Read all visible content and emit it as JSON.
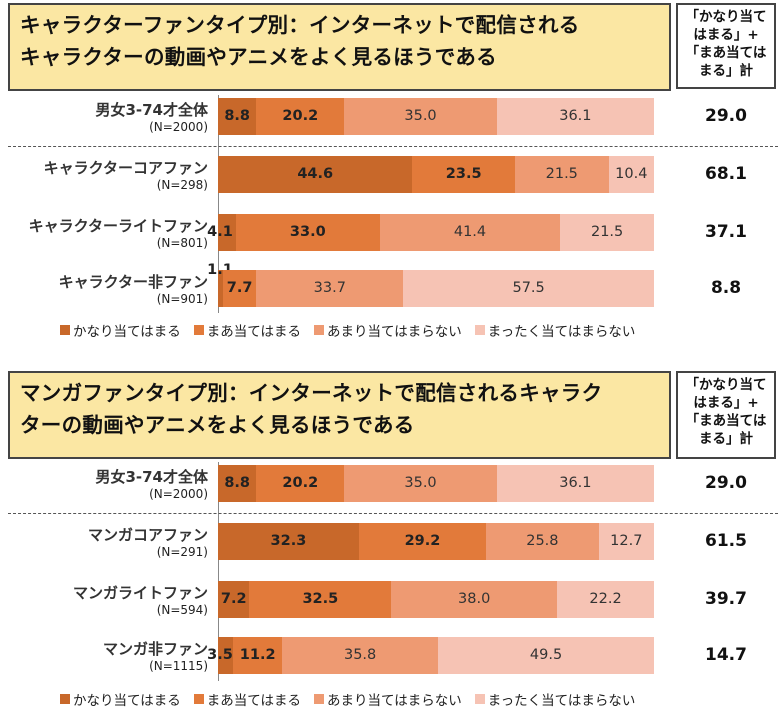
{
  "colors": [
    "#c8682a",
    "#e27a3a",
    "#ee9a72",
    "#f6c3b4"
  ],
  "legend": [
    "かなり当てはまる",
    "まあ当てはまる",
    "あまり当てはまらない",
    "まったく当てはまらない"
  ],
  "chart_data": [
    {
      "type": "bar",
      "stacked": true,
      "orientation": "horizontal",
      "title_lines": [
        "キャラクターファンタイプ別：インターネットで配信される",
        "キャラクターの動画やアニメをよく見るほうである"
      ],
      "total_header": [
        "「かなり当て",
        "はまる」+",
        "「まあ当ては",
        "まる」計"
      ],
      "xlim": [
        0,
        100
      ],
      "series_names": [
        "かなり当てはまる",
        "まあ当てはまる",
        "あまり当てはまらない",
        "まったく当てはまらない"
      ],
      "rows": [
        {
          "name": "男女3-74才全体",
          "n": "(N=2000)",
          "values": [
            8.8,
            20.2,
            35.0,
            36.1
          ],
          "labels": [
            "8.8",
            "20.2",
            "35.0",
            "36.1"
          ],
          "total": "29.0"
        },
        {
          "name": "キャラクターコアファン",
          "n": "(N=298)",
          "values": [
            44.6,
            23.5,
            21.5,
            10.4
          ],
          "labels": [
            "44.6",
            "23.5",
            "21.5",
            "10.4"
          ],
          "total": "68.1"
        },
        {
          "name": "キャラクターライトファン",
          "n": "(N=801)",
          "values": [
            4.1,
            33.0,
            41.4,
            21.5
          ],
          "labels": [
            "4.1",
            "33.0",
            "41.4",
            "21.5"
          ],
          "total": "37.1"
        },
        {
          "name": "キャラクター非ファン",
          "n": "(N=901)",
          "values": [
            1.1,
            7.7,
            33.7,
            57.5
          ],
          "labels": [
            "1.1",
            "7.7",
            "33.7",
            "57.5"
          ],
          "total": "8.8"
        }
      ]
    },
    {
      "type": "bar",
      "stacked": true,
      "orientation": "horizontal",
      "title_lines": [
        "マンガファンタイプ別：インターネットで配信されるキャラク",
        "ターの動画やアニメをよく見るほうである"
      ],
      "total_header": [
        "「かなり当て",
        "はまる」+",
        "「まあ当ては",
        "まる」計"
      ],
      "xlim": [
        0,
        100
      ],
      "series_names": [
        "かなり当てはまる",
        "まあ当てはまる",
        "あまり当てはまらない",
        "まったく当てはまらない"
      ],
      "rows": [
        {
          "name": "男女3-74才全体",
          "n": "(N=2000)",
          "values": [
            8.8,
            20.2,
            35.0,
            36.1
          ],
          "labels": [
            "8.8",
            "20.2",
            "35.0",
            "36.1"
          ],
          "total": "29.0"
        },
        {
          "name": "マンガコアファン",
          "n": "(N=291)",
          "values": [
            32.3,
            29.2,
            25.8,
            12.7
          ],
          "labels": [
            "32.3",
            "29.2",
            "25.8",
            "12.7"
          ],
          "total": "61.5"
        },
        {
          "name": "マンガライトファン",
          "n": "(N=594)",
          "values": [
            7.2,
            32.5,
            38.0,
            22.2
          ],
          "labels": [
            "7.2",
            "32.5",
            "38.0",
            "22.2"
          ],
          "total": "39.7"
        },
        {
          "name": "マンガ非ファン",
          "n": "(N=1115)",
          "values": [
            3.5,
            11.2,
            35.8,
            49.5
          ],
          "labels": [
            "3.5",
            "11.2",
            "35.8",
            "49.5"
          ],
          "total": "14.7"
        }
      ]
    }
  ]
}
